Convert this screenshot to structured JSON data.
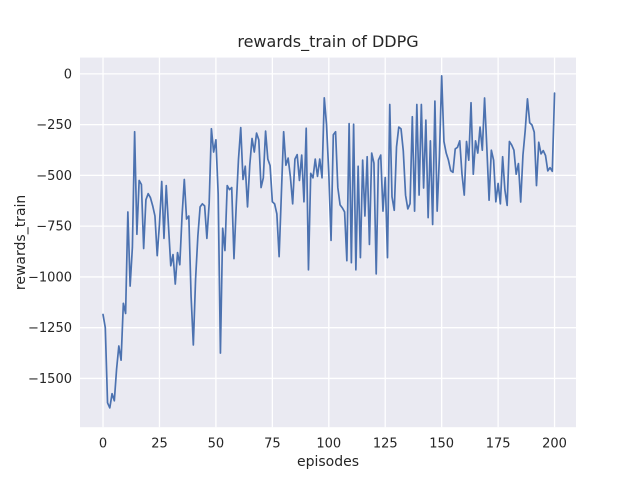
{
  "colors": {
    "line": "#4c72b0",
    "axes_background": "#eaeaf2",
    "grid": "#ffffff",
    "figure_background": "#ffffff",
    "text": "#262626"
  },
  "chart_data": {
    "type": "line",
    "title": "rewards_train of DDPG",
    "xlabel": "episodes",
    "ylabel": "rewards_train",
    "x_ticks": [
      0,
      25,
      50,
      75,
      100,
      125,
      150,
      175,
      200
    ],
    "y_ticks": [
      0,
      -250,
      -500,
      -750,
      -1000,
      -1250,
      -1500
    ],
    "xlim": [
      -10.2,
      209.5
    ],
    "ylim": [
      -1740,
      80
    ],
    "grid": true,
    "legend_position": "none",
    "series": [
      {
        "name": "rewards_train",
        "color": "#4c72b0",
        "x_start": 0,
        "x_step": 1,
        "values": [
          -1185,
          -1250,
          -1620,
          -1645,
          -1575,
          -1610,
          -1455,
          -1340,
          -1410,
          -1130,
          -1180,
          -680,
          -1045,
          -855,
          -285,
          -790,
          -525,
          -545,
          -860,
          -620,
          -590,
          -610,
          -650,
          -700,
          -895,
          -740,
          -530,
          -810,
          -550,
          -750,
          -945,
          -890,
          -1035,
          -880,
          -940,
          -700,
          -520,
          -715,
          -700,
          -1095,
          -1335,
          -1010,
          -800,
          -655,
          -640,
          -650,
          -810,
          -640,
          -270,
          -385,
          -325,
          -590,
          -1375,
          -760,
          -870,
          -550,
          -570,
          -560,
          -910,
          -650,
          -420,
          -265,
          -520,
          -455,
          -655,
          -450,
          -318,
          -385,
          -292,
          -325,
          -560,
          -512,
          -282,
          -420,
          -452,
          -630,
          -640,
          -690,
          -900,
          -590,
          -285,
          -450,
          -415,
          -508,
          -640,
          -420,
          -398,
          -525,
          -400,
          -630,
          -268,
          -965,
          -490,
          -512,
          -420,
          -505,
          -420,
          -512,
          -118,
          -250,
          -490,
          -820,
          -300,
          -285,
          -560,
          -645,
          -660,
          -680,
          -920,
          -245,
          -930,
          -248,
          -965,
          -455,
          -905,
          -425,
          -700,
          -408,
          -840,
          -390,
          -440,
          -985,
          -425,
          -400,
          -676,
          -510,
          -905,
          -151,
          -605,
          -672,
          -360,
          -262,
          -271,
          -380,
          -597,
          -665,
          -639,
          -211,
          -676,
          -151,
          -597,
          -151,
          -562,
          -228,
          -708,
          -330,
          -742,
          -134,
          -676,
          -408,
          -10,
          -333,
          -390,
          -425,
          -477,
          -485,
          -370,
          -362,
          -330,
          -494,
          -597,
          -333,
          -425,
          -142,
          -494,
          -330,
          -390,
          -262,
          -376,
          -119,
          -362,
          -622,
          -376,
          -425,
          -630,
          -540,
          -640,
          -408,
          -571,
          -648,
          -333,
          -350,
          -376,
          -494,
          -442,
          -631,
          -400,
          -279,
          -123,
          -241,
          -252,
          -287,
          -550,
          -337,
          -394,
          -378,
          -402,
          -478,
          -462,
          -480,
          -95
        ]
      }
    ]
  }
}
